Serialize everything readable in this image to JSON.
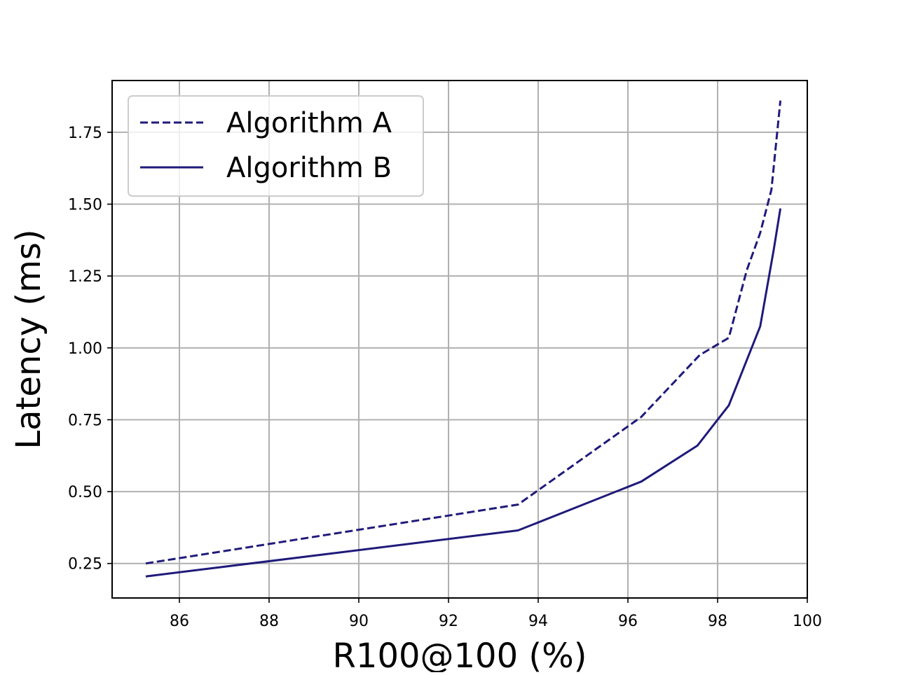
{
  "chart_data": {
    "type": "line",
    "xlabel": "R100@100 (%)",
    "ylabel": "Latency (ms)",
    "xlim": [
      84.5,
      100.0
    ],
    "ylim": [
      0.13,
      1.93
    ],
    "xticks": [
      86,
      88,
      90,
      92,
      94,
      96,
      98,
      100
    ],
    "xtick_labels": [
      "86",
      "88",
      "90",
      "92",
      "94",
      "96",
      "98",
      "100"
    ],
    "yticks": [
      0.25,
      0.5,
      0.75,
      1.0,
      1.25,
      1.5,
      1.75
    ],
    "ytick_labels": [
      "0.25",
      "0.50",
      "0.75",
      "1.00",
      "1.25",
      "1.50",
      "1.75"
    ],
    "grid": true,
    "legend_position": "top-left",
    "series": [
      {
        "name": "Algorithm A",
        "line_style": "dashed",
        "color": "#1f1a7a",
        "points": [
          [
            85.25,
            0.25
          ],
          [
            93.55,
            0.455
          ],
          [
            96.3,
            0.76
          ],
          [
            97.6,
            0.975
          ],
          [
            98.25,
            1.035
          ],
          [
            98.65,
            1.27
          ],
          [
            98.95,
            1.4
          ],
          [
            99.2,
            1.55
          ],
          [
            99.4,
            1.86
          ]
        ]
      },
      {
        "name": "Algorithm B",
        "line_style": "solid",
        "color": "#1f1a7a",
        "points": [
          [
            85.25,
            0.205
          ],
          [
            93.55,
            0.365
          ],
          [
            96.3,
            0.535
          ],
          [
            97.55,
            0.66
          ],
          [
            98.25,
            0.8
          ],
          [
            98.95,
            1.075
          ],
          [
            99.25,
            1.34
          ],
          [
            99.4,
            1.485
          ]
        ]
      }
    ]
  }
}
